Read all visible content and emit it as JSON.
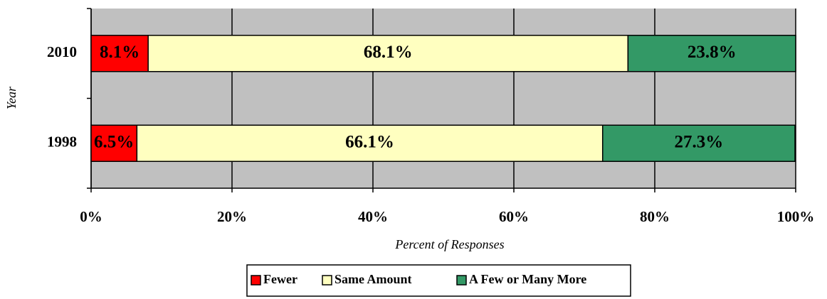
{
  "chart_data": {
    "type": "stacked-barh",
    "x_label": "Percent of Responses",
    "y_label": "Year",
    "categories": [
      "2010",
      "1998"
    ],
    "series": [
      {
        "name": "Fewer",
        "color": "#ff0000",
        "values": [
          8.1,
          6.5
        ],
        "value_labels": [
          "8.1%",
          "6.5%"
        ]
      },
      {
        "name": "Same Amount",
        "color": "#ffffc0",
        "values": [
          68.1,
          66.1
        ],
        "value_labels": [
          "68.1%",
          "66.1%"
        ]
      },
      {
        "name": "A Few or Many More",
        "color": "#339966",
        "values": [
          23.8,
          27.3
        ],
        "value_labels": [
          "23.8%",
          "27.3%"
        ]
      }
    ],
    "xlim": [
      0,
      100
    ],
    "xticks": [
      {
        "value": 0,
        "label": "0%"
      },
      {
        "value": 20,
        "label": "20%"
      },
      {
        "value": 40,
        "label": "40%"
      },
      {
        "value": 60,
        "label": "60%"
      },
      {
        "value": 80,
        "label": "80%"
      },
      {
        "value": 100,
        "label": "100%"
      }
    ],
    "grid": true,
    "legend": "bottom"
  }
}
